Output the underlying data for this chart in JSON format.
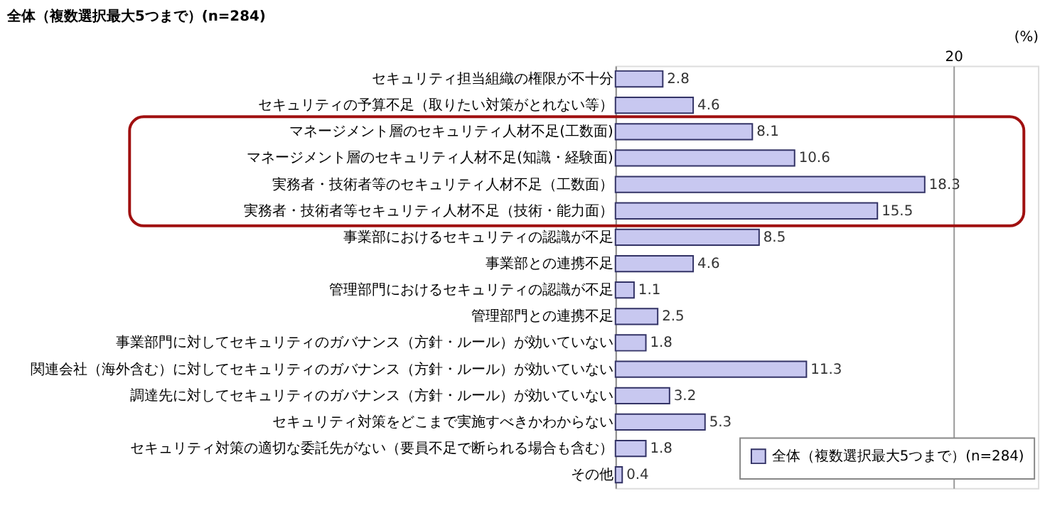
{
  "chart_data": {
    "type": "bar",
    "orientation": "horizontal",
    "title": "全体（複数選択最大5つまで）(n=284)",
    "xlabel": "(%)",
    "categories": [
      "セキュリティ担当組織の権限が不十分",
      "セキュリティの予算不足（取りたい対策がとれない等）",
      "マネージメント層のセキュリティ人材不足(工数面)",
      "マネージメント層のセキュリティ人材不足(知識・経験面)",
      "実務者・技術者等のセキュリティ人材不足（工数面）",
      "実務者・技術者等セキュリティ人材不足（技術・能力面）",
      "事業部におけるセキュリティの認識が不足",
      "事業部との連携不足",
      "管理部門におけるセキュリティの認識が不足",
      "管理部門との連携不足",
      "事業部門に対してセキュリティのガバナンス（方針・ルール）が効いていない",
      "関連会社（海外含む）に対してセキュリティのガバナンス（方針・ルール）が効いていない",
      "調達先に対してセキュリティのガバナンス（方針・ルール）が効いていない",
      "セキュリティ対策をどこまで実施すべきかわからない",
      "セキュリティ対策の適切な委託先がない（要員不足で断られる場合も含む）",
      "その他"
    ],
    "series": [
      {
        "name": "全体（複数選択最大5つまで）(n=284)",
        "color": "#c8c8f0",
        "values": [
          2.8,
          4.6,
          8.1,
          10.6,
          18.3,
          15.5,
          8.5,
          4.6,
          1.1,
          2.5,
          1.8,
          11.3,
          3.2,
          5.3,
          1.8,
          0.4
        ]
      }
    ],
    "xlim": [
      0,
      25
    ],
    "xticks": [
      20
    ],
    "grid": "x",
    "legend": "bottom right",
    "data_labels": true
  }
}
